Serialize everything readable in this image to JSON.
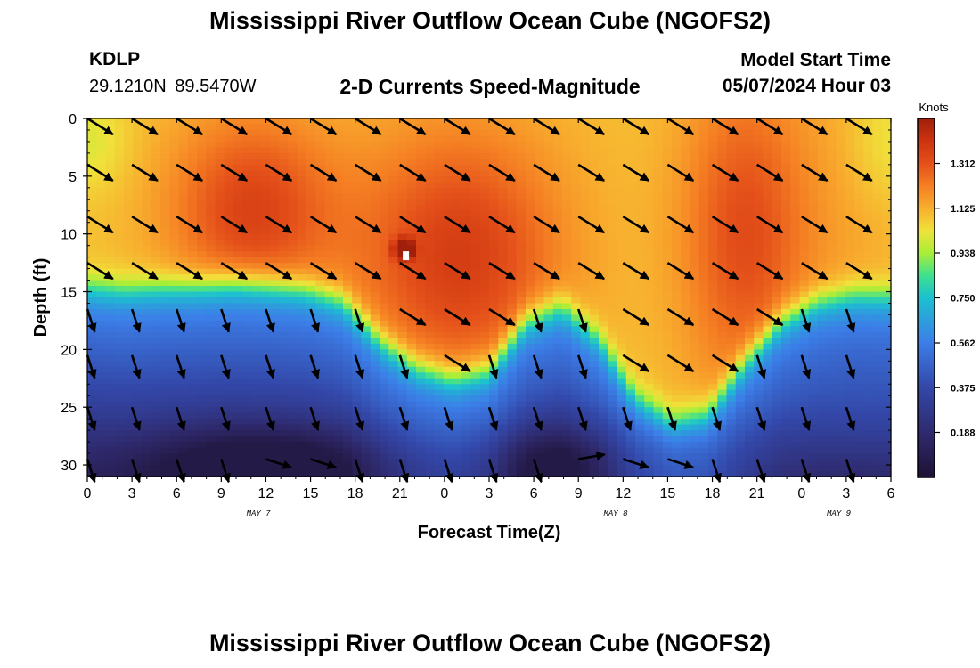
{
  "header": {
    "title": "Mississippi River Outflow Ocean Cube (NGOFS2)",
    "station_id": "KDLP",
    "coordinates": "29.1210N  89.5470W",
    "subtitle": "2-D Currents Speed-Magnitude",
    "model_start_label": "Model Start Time",
    "model_start_value": "05/07/2024 Hour 03"
  },
  "footer": {
    "title": "Mississippi River Outflow Ocean Cube (NGOFS2)"
  },
  "chart_data": {
    "type": "heatmap",
    "xlabel": "Forecast Time(Z)",
    "ylabel": "Depth (ft)",
    "x_ticks": [
      "0",
      "3",
      "6",
      "9",
      "12",
      "15",
      "18",
      "21",
      "0",
      "3",
      "6",
      "9",
      "12",
      "15",
      "18",
      "21",
      "0",
      "3",
      "6"
    ],
    "x_tick_hours": [
      0,
      3,
      6,
      9,
      12,
      15,
      18,
      21,
      24,
      27,
      30,
      33,
      36,
      39,
      42,
      45,
      48,
      51,
      54
    ],
    "date_labels": [
      {
        "text": "MAY 7",
        "hour": 11.5
      },
      {
        "text": "MAY 8",
        "hour": 35.5
      },
      {
        "text": "MAY 9",
        "hour": 50.5
      }
    ],
    "xlim": [
      0,
      54
    ],
    "y_ticks": [
      0,
      5,
      10,
      15,
      20,
      25,
      30
    ],
    "ylim": [
      31,
      0
    ],
    "colorbar": {
      "unit": "Knots",
      "range": [
        0.0,
        1.5
      ],
      "ticks": [
        "1.312",
        "1.125",
        "0.938",
        "0.750",
        "0.562",
        "0.375",
        "0.188"
      ],
      "tick_values": [
        1.312,
        1.125,
        0.938,
        0.75,
        0.562,
        0.375,
        0.188
      ]
    },
    "vector_times": [
      0,
      3,
      6,
      9,
      12,
      15,
      18,
      21,
      24,
      27,
      30,
      33,
      36,
      39,
      42,
      45,
      48,
      51
    ],
    "vector_depths": [
      0,
      4,
      8.5,
      12.5,
      16.5,
      20.5,
      25,
      29.5
    ],
    "interface_depth": [
      14.5,
      14.8,
      14.6,
      14.5,
      14.3,
      14.5,
      14.8,
      15.8,
      19.2,
      21.5,
      22.5,
      21.8,
      17.5,
      16.2,
      19,
      24,
      26.2,
      25.5,
      21,
      17.5,
      15.8,
      15.2,
      15.3
    ]
  }
}
